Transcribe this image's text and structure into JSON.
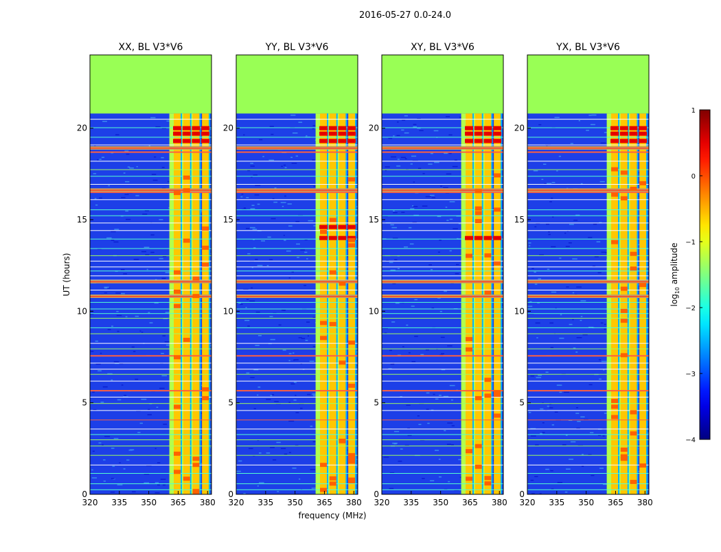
{
  "figure": {
    "suptitle": "2016-05-27 0.0-24.0"
  },
  "chart_data": {
    "type": "heatmap",
    "shared": {
      "xlabel": "frequency (MHz)",
      "ylabel": "UT (hours)",
      "xlim": [
        320,
        382
      ],
      "ylim": [
        0,
        24
      ],
      "xticks": [
        320,
        335,
        350,
        365,
        380
      ],
      "yticks": [
        0,
        5,
        10,
        15,
        20
      ],
      "flag_start_hour": 20.8,
      "flag_color": "#99ff55",
      "band_edges_mhz": [
        360.5,
        374.5
      ],
      "channel_strips_mhz": [
        364.5,
        369.3,
        374.1,
        378.9
      ]
    },
    "panels": [
      {
        "title": "XX, BL V3*V6",
        "peak_hours": [
          19.3,
          19.7,
          20.0
        ],
        "hot_hours": [
          10.8,
          11.6,
          16.6,
          18.9
        ]
      },
      {
        "title": "YY, BL V3*V6",
        "peak_hours": [
          19.3,
          19.7,
          20.0,
          14.0,
          14.6
        ],
        "hot_hours": [
          10.8,
          11.6,
          16.6,
          18.9
        ]
      },
      {
        "title": "XY, BL V3*V6",
        "peak_hours": [
          19.3,
          19.7,
          20.0,
          14.0
        ],
        "hot_hours": [
          10.8,
          11.6,
          16.6,
          18.9
        ]
      },
      {
        "title": "YX, BL V3*V6",
        "peak_hours": [
          19.3,
          19.7,
          20.0
        ],
        "hot_hours": [
          10.8,
          11.6,
          16.6,
          18.9
        ]
      }
    ],
    "colorbar": {
      "label_prefix": "log",
      "label_sub": "10",
      "label_suffix": " amplitude",
      "range": [
        -4,
        1
      ],
      "ticks": [
        -4,
        -3,
        -2,
        -1,
        0,
        1
      ],
      "tick_labels": [
        "−4",
        "−3",
        "−2",
        "−1",
        "0",
        "1"
      ],
      "colormap": "jet"
    }
  }
}
